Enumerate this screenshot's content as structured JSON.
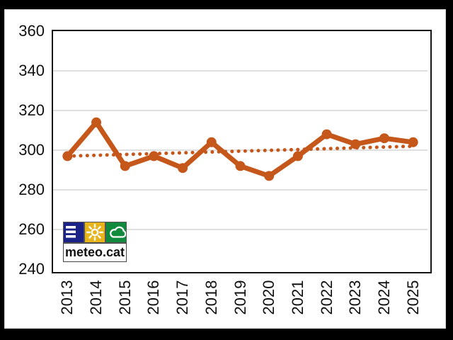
{
  "page": {
    "letterbox_color": "#000000",
    "panel_background": "#ffffff",
    "panel_border_color": "#d8d8d8"
  },
  "chart_data": {
    "type": "line",
    "title": "",
    "xlabel": "",
    "ylabel": "",
    "categories": [
      "2013",
      "2014",
      "2015",
      "2016",
      "2017",
      "2018",
      "2019",
      "2020",
      "2021",
      "2022",
      "2023",
      "2024",
      "2025"
    ],
    "series": [
      {
        "name": "annual-values",
        "style": "solid-line-with-round-markers",
        "color": "#C5571A",
        "values": [
          297,
          314,
          292,
          297,
          291,
          304,
          292,
          287,
          297,
          308,
          303,
          306,
          304
        ]
      },
      {
        "name": "linear-trend",
        "style": "dotted",
        "color": "#C5571A",
        "start": 297,
        "end": 302
      }
    ],
    "ylim": [
      240,
      360
    ],
    "yticks": [
      240,
      260,
      280,
      300,
      320,
      340,
      360
    ],
    "grid": true,
    "gridline_color": "#D6D6D6",
    "frame_color": "#151515",
    "legend": "none",
    "x_tick_rotation_deg": -90
  },
  "logo": {
    "text": "meteo.cat",
    "icons": [
      {
        "name": "stripes-icon",
        "bg": "#1B2386",
        "glyph_color": "#ffffff"
      },
      {
        "name": "sun-icon",
        "bg": "#E8B41C",
        "glyph_color": "#ffffff"
      },
      {
        "name": "cloud-icon",
        "bg": "#128A3E",
        "glyph_color": "#ffffff"
      }
    ]
  }
}
